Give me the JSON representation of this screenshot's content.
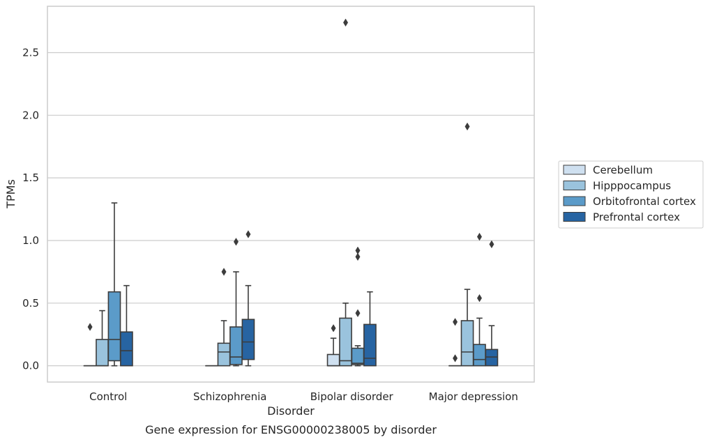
{
  "chart_data": {
    "type": "box",
    "title": "",
    "caption": "Gene expression for ENSG00000238005 by disorder",
    "xlabel": "Disorder",
    "ylabel": "TPMs",
    "ylim": [
      -0.13,
      2.87
    ],
    "yticks": [
      "0.0",
      "0.5",
      "1.0",
      "1.5",
      "2.0",
      "2.5"
    ],
    "grid": true,
    "legend_position": "right",
    "categories": [
      "Control",
      "Schizophrenia",
      "Bipolar disorder",
      "Major depression"
    ],
    "series": [
      {
        "name": "Cerebellum",
        "color": "#cfe0f0",
        "boxes": [
          {
            "whisker_low": 0,
            "q1": 0,
            "median": 0,
            "q3": 0,
            "whisker_high": 0,
            "outliers": [
              0.31
            ]
          },
          {
            "whisker_low": 0,
            "q1": 0,
            "median": 0,
            "q3": 0,
            "whisker_high": 0,
            "outliers": []
          },
          {
            "whisker_low": 0,
            "q1": 0,
            "median": 0,
            "q3": 0.09,
            "whisker_high": 0.22,
            "outliers": [
              0.3
            ]
          },
          {
            "whisker_low": 0,
            "q1": 0,
            "median": 0,
            "q3": 0,
            "whisker_high": 0,
            "outliers": [
              0.06,
              0.35
            ]
          }
        ]
      },
      {
        "name": "Hipppocampus",
        "color": "#9ac3dd",
        "boxes": [
          {
            "whisker_low": 0,
            "q1": 0,
            "median": 0,
            "q3": 0.21,
            "whisker_high": 0.44,
            "outliers": []
          },
          {
            "whisker_low": 0,
            "q1": 0,
            "median": 0.11,
            "q3": 0.18,
            "whisker_high": 0.36,
            "outliers": [
              0.75
            ]
          },
          {
            "whisker_low": 0,
            "q1": 0,
            "median": 0.04,
            "q3": 0.38,
            "whisker_high": 0.5,
            "outliers": [
              2.74
            ]
          },
          {
            "whisker_low": 0,
            "q1": 0,
            "median": 0.11,
            "q3": 0.36,
            "whisker_high": 0.61,
            "outliers": [
              1.91
            ]
          }
        ]
      },
      {
        "name": "Orbitofrontal cortex",
        "color": "#5b9bc9",
        "boxes": [
          {
            "whisker_low": 0,
            "q1": 0.04,
            "median": 0.21,
            "q3": 0.59,
            "whisker_high": 1.3,
            "outliers": []
          },
          {
            "whisker_low": 0,
            "q1": 0.01,
            "median": 0.07,
            "q3": 0.31,
            "whisker_high": 0.75,
            "outliers": [
              0.99
            ]
          },
          {
            "whisker_low": 0,
            "q1": 0.01,
            "median": 0.02,
            "q3": 0.14,
            "whisker_high": 0.16,
            "outliers": [
              0.42,
              0.87,
              0.92
            ]
          },
          {
            "whisker_low": 0,
            "q1": 0,
            "median": 0.05,
            "q3": 0.17,
            "whisker_high": 0.38,
            "outliers": [
              0.54,
              1.03
            ]
          }
        ]
      },
      {
        "name": "Prefrontal cortex",
        "color": "#2764a2",
        "boxes": [
          {
            "whisker_low": 0,
            "q1": 0,
            "median": 0.12,
            "q3": 0.27,
            "whisker_high": 0.64,
            "outliers": []
          },
          {
            "whisker_low": 0,
            "q1": 0.05,
            "median": 0.19,
            "q3": 0.37,
            "whisker_high": 0.64,
            "outliers": [
              1.05
            ]
          },
          {
            "whisker_low": 0,
            "q1": 0,
            "median": 0.06,
            "q3": 0.33,
            "whisker_high": 0.59,
            "outliers": []
          },
          {
            "whisker_low": 0,
            "q1": 0,
            "median": 0.07,
            "q3": 0.13,
            "whisker_high": 0.32,
            "outliers": [
              0.97
            ]
          }
        ]
      }
    ]
  }
}
